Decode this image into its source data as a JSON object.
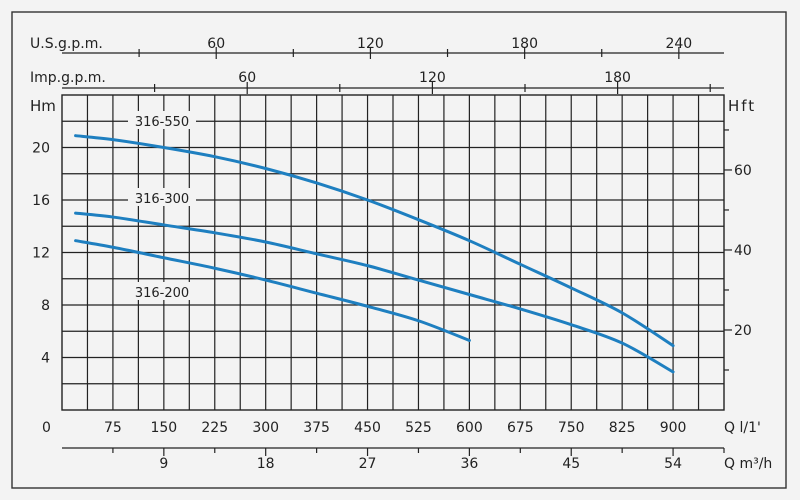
{
  "chart_data": {
    "type": "line",
    "units": {
      "left": "Hm",
      "right": "Hft",
      "bottom_primary": "Q l/1'",
      "bottom_secondary": "Q m³/h",
      "top_us": "U.S.g.p.m.",
      "top_imp": "Imp.g.p.m."
    },
    "x_ticks": [
      "75",
      "150",
      "225",
      "300",
      "375",
      "450",
      "525",
      "600",
      "675",
      "750",
      "825",
      "900"
    ],
    "x_zero": "0",
    "xlim": [
      0,
      975
    ],
    "m3h_ticks": [
      "9",
      "18",
      "27",
      "36",
      "45",
      "54"
    ],
    "us_gpm_ticks": [
      "60",
      "120",
      "180",
      "240"
    ],
    "imp_gpm_ticks": [
      "60",
      "120",
      "180"
    ],
    "y_ticks": [
      "4",
      "8",
      "12",
      "16",
      "20"
    ],
    "ylim": [
      0,
      24
    ],
    "hft_ticks": [
      "20",
      "40",
      "60"
    ],
    "series": [
      {
        "name": "316-550",
        "x": [
          20,
          75,
          150,
          225,
          300,
          375,
          450,
          525,
          600,
          675,
          750,
          825,
          900
        ],
        "y": [
          20.9,
          20.6,
          20.0,
          19.3,
          18.4,
          17.3,
          16.0,
          14.5,
          12.9,
          11.1,
          9.3,
          7.4,
          4.9
        ]
      },
      {
        "name": "316-300",
        "x": [
          20,
          75,
          150,
          225,
          300,
          375,
          450,
          525,
          600,
          675,
          750,
          825,
          900
        ],
        "y": [
          15.0,
          14.7,
          14.1,
          13.5,
          12.8,
          11.9,
          11.0,
          9.9,
          8.8,
          7.7,
          6.5,
          5.1,
          2.9
        ]
      },
      {
        "name": "316-200",
        "x": [
          20,
          75,
          150,
          225,
          300,
          375,
          450,
          525,
          600
        ],
        "y": [
          12.9,
          12.4,
          11.6,
          10.8,
          9.9,
          8.9,
          7.9,
          6.8,
          5.3
        ]
      }
    ]
  }
}
